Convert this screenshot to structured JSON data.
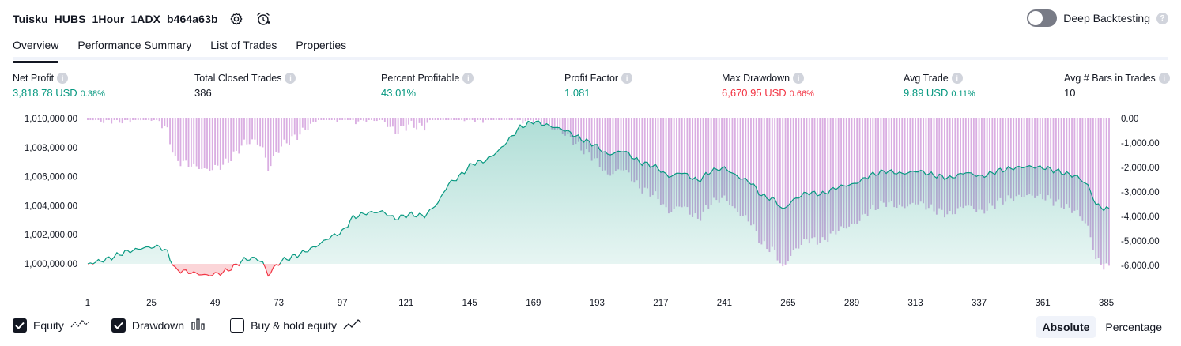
{
  "header": {
    "title": "Tuisku_HUBS_1Hour_1ADX_b464a63b",
    "settings_icon": "gear-icon",
    "alert_icon": "alarm-plus-icon"
  },
  "deep_backtesting": {
    "label": "Deep Backtesting",
    "enabled": false
  },
  "tabs": [
    {
      "label": "Overview",
      "active": true
    },
    {
      "label": "Performance Summary",
      "active": false
    },
    {
      "label": "List of Trades",
      "active": false
    },
    {
      "label": "Properties",
      "active": false
    }
  ],
  "metrics": [
    {
      "label": "Net Profit",
      "value": "3,818.78 USD",
      "pct": "0.38%",
      "tone": "pos"
    },
    {
      "label": "Total Closed Trades",
      "value": "386",
      "pct": "",
      "tone": "neu"
    },
    {
      "label": "Percent Profitable",
      "value": "43.01%",
      "pct": "",
      "tone": "pos"
    },
    {
      "label": "Profit Factor",
      "value": "1.081",
      "pct": "",
      "tone": "pos"
    },
    {
      "label": "Max Drawdown",
      "value": "6,670.95 USD",
      "pct": "0.66%",
      "tone": "neg"
    },
    {
      "label": "Avg Trade",
      "value": "9.89 USD",
      "pct": "0.11%",
      "tone": "pos"
    },
    {
      "label": "Avg # Bars in Trades",
      "value": "10",
      "pct": "",
      "tone": "neu"
    }
  ],
  "legend": {
    "equity": {
      "label": "Equity",
      "checked": true
    },
    "drawdown": {
      "label": "Drawdown",
      "checked": true
    },
    "buy_hold": {
      "label": "Buy & hold equity",
      "checked": false
    }
  },
  "modes": {
    "absolute": "Absolute",
    "percentage": "Percentage",
    "active": "absolute"
  },
  "colors": {
    "profit": "#089981",
    "loss": "#f23645",
    "drawdown_bar": "#ce93d8",
    "equity_fill": "#cdeee4",
    "loss_fill": "#fbd5d8"
  },
  "chart_data": {
    "type": "area",
    "x_label_ticks": [
      "1",
      "25",
      "49",
      "73",
      "97",
      "121",
      "145",
      "169",
      "193",
      "217",
      "241",
      "265",
      "289",
      "313",
      "337",
      "361",
      "385"
    ],
    "x_ticks_values": [
      1,
      25,
      49,
      73,
      97,
      121,
      145,
      169,
      193,
      217,
      241,
      265,
      289,
      313,
      337,
      361,
      385
    ],
    "x_range": [
      1,
      386
    ],
    "left_axis": {
      "ticks": [
        1010000,
        1008000,
        1006000,
        1004000,
        1002000,
        1000000
      ],
      "tick_labels": [
        "1,010,000.00",
        "1,008,000.00",
        "1,006,000.00",
        "1,004,000.00",
        "1,002,000.00",
        "1,000,000.00"
      ],
      "range": [
        999000,
        1010000
      ]
    },
    "right_axis": {
      "ticks": [
        0,
        -1000,
        -2000,
        -3000,
        -4000,
        -5000,
        -6000
      ],
      "tick_labels": [
        "0.00",
        "-1,000.00",
        "-2,000.00",
        "-3,000.00",
        "-4,000.00",
        "-5,000.00",
        "-6,000.00"
      ],
      "range": [
        -6670.95,
        0
      ]
    },
    "baseline": 1000000,
    "equity_keypoints": [
      [
        1,
        1000000
      ],
      [
        8,
        1000300
      ],
      [
        15,
        1000800
      ],
      [
        22,
        1001100
      ],
      [
        28,
        1001200
      ],
      [
        31,
        1000800
      ],
      [
        34,
        999600
      ],
      [
        40,
        999400
      ],
      [
        46,
        999200
      ],
      [
        52,
        999400
      ],
      [
        56,
        999800
      ],
      [
        60,
        1000300
      ],
      [
        64,
        1000400
      ],
      [
        67,
        1000100
      ],
      [
        69,
        999200
      ],
      [
        71,
        999700
      ],
      [
        74,
        1000200
      ],
      [
        80,
        1000600
      ],
      [
        87,
        1001200
      ],
      [
        92,
        1001800
      ],
      [
        97,
        1002200
      ],
      [
        101,
        1003200
      ],
      [
        106,
        1003500
      ],
      [
        112,
        1003600
      ],
      [
        117,
        1003100
      ],
      [
        122,
        1003400
      ],
      [
        128,
        1003300
      ],
      [
        133,
        1004200
      ],
      [
        137,
        1005500
      ],
      [
        141,
        1006000
      ],
      [
        146,
        1006900
      ],
      [
        151,
        1007100
      ],
      [
        156,
        1007800
      ],
      [
        160,
        1008600
      ],
      [
        164,
        1009400
      ],
      [
        169,
        1009800
      ],
      [
        175,
        1009500
      ],
      [
        181,
        1009200
      ],
      [
        187,
        1008600
      ],
      [
        192,
        1008200
      ],
      [
        197,
        1007500
      ],
      [
        203,
        1007800
      ],
      [
        209,
        1007000
      ],
      [
        215,
        1006700
      ],
      [
        220,
        1006000
      ],
      [
        225,
        1006300
      ],
      [
        231,
        1005700
      ],
      [
        236,
        1006400
      ],
      [
        241,
        1006600
      ],
      [
        246,
        1006000
      ],
      [
        251,
        1005600
      ],
      [
        255,
        1004700
      ],
      [
        260,
        1004400
      ],
      [
        263,
        1003700
      ],
      [
        267,
        1004400
      ],
      [
        272,
        1004900
      ],
      [
        278,
        1004800
      ],
      [
        284,
        1005300
      ],
      [
        290,
        1005500
      ],
      [
        296,
        1006100
      ],
      [
        302,
        1006400
      ],
      [
        308,
        1006200
      ],
      [
        314,
        1006400
      ],
      [
        320,
        1006100
      ],
      [
        326,
        1005900
      ],
      [
        332,
        1006300
      ],
      [
        338,
        1006000
      ],
      [
        344,
        1006400
      ],
      [
        350,
        1006600
      ],
      [
        356,
        1006700
      ],
      [
        362,
        1006600
      ],
      [
        368,
        1006300
      ],
      [
        374,
        1006000
      ],
      [
        378,
        1005400
      ],
      [
        381,
        1004100
      ],
      [
        384,
        1003800
      ],
      [
        386,
        1003818.78
      ]
    ]
  }
}
